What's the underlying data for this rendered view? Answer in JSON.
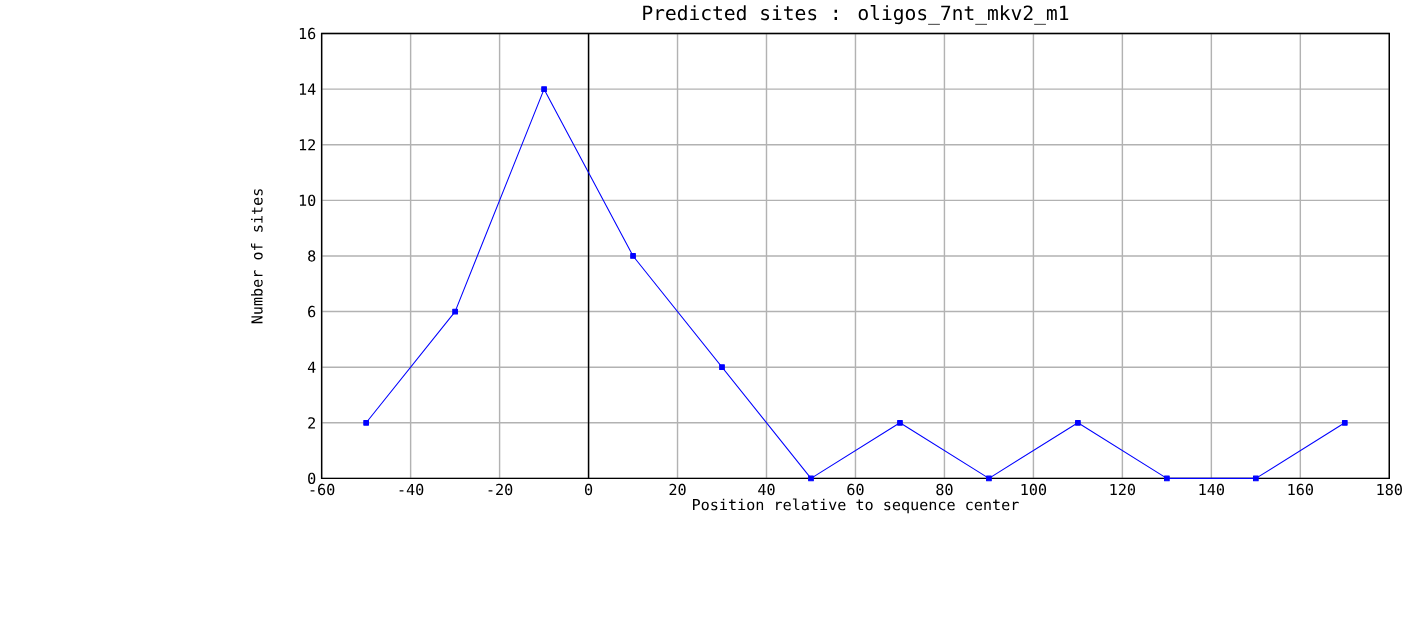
{
  "chart_data": {
    "type": "line",
    "title": "Predicted sites : oligos_7nt_mkv2_m1",
    "xlabel": "Position relative to sequence center",
    "ylabel": "Number of sites",
    "x": [
      -50,
      -30,
      -10,
      10,
      30,
      50,
      70,
      90,
      110,
      130,
      150,
      170
    ],
    "series": [
      {
        "color": "#0000ff",
        "values": [
          2,
          6,
          14,
          8,
          4,
          0,
          2,
          0,
          2,
          0,
          0,
          2
        ]
      }
    ],
    "xlim": [
      -60,
      180
    ],
    "xticks": [
      -60,
      -40,
      -20,
      0,
      20,
      40,
      60,
      80,
      100,
      120,
      140,
      160,
      180
    ],
    "ylim": [
      0,
      16
    ],
    "yticks": [
      0,
      2,
      4,
      6,
      8,
      10,
      12,
      14,
      16
    ],
    "grid": true,
    "marker": "square",
    "line_style": "solid",
    "ref_lines": [
      {
        "axis": "x",
        "value": 0,
        "color": "#000000"
      }
    ]
  }
}
